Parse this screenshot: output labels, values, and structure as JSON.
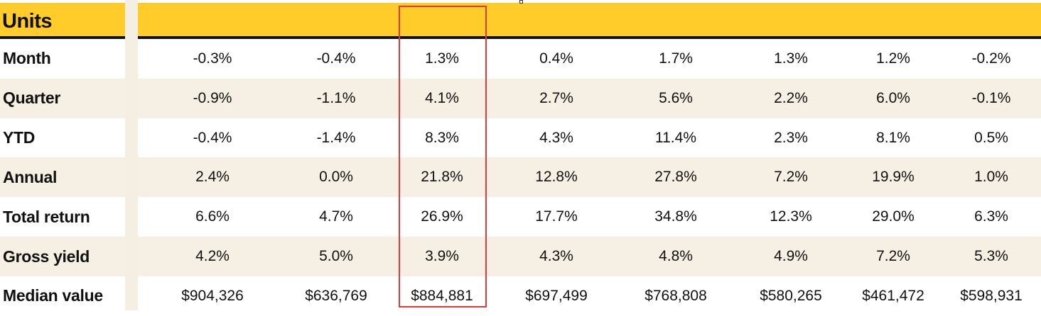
{
  "header": {
    "title": "Units"
  },
  "rows": [
    {
      "label": "Month",
      "values": [
        "-0.3%",
        "-0.4%",
        "1.3%",
        "0.4%",
        "1.7%",
        "1.3%",
        "1.2%",
        "-0.2%"
      ]
    },
    {
      "label": "Quarter",
      "values": [
        "-0.9%",
        "-1.1%",
        "4.1%",
        "2.7%",
        "5.6%",
        "2.2%",
        "6.0%",
        "-0.1%"
      ]
    },
    {
      "label": "YTD",
      "values": [
        "-0.4%",
        "-1.4%",
        "8.3%",
        "4.3%",
        "11.4%",
        "2.3%",
        "8.1%",
        "0.5%"
      ]
    },
    {
      "label": "Annual",
      "values": [
        "2.4%",
        "0.0%",
        "21.8%",
        "12.8%",
        "27.8%",
        "7.2%",
        "19.9%",
        "1.0%"
      ]
    },
    {
      "label": "Total return",
      "values": [
        "6.6%",
        "4.7%",
        "26.9%",
        "17.7%",
        "34.8%",
        "12.3%",
        "29.0%",
        "6.3%"
      ]
    },
    {
      "label": "Gross yield",
      "values": [
        "4.2%",
        "5.0%",
        "3.9%",
        "4.3%",
        "4.8%",
        "4.9%",
        "7.2%",
        "5.3%"
      ]
    },
    {
      "label": "Median value",
      "values": [
        "$904,326",
        "$636,769",
        "$884,881",
        "$697,499",
        "$768,808",
        "$580,265",
        "$461,472",
        "$598,931"
      ]
    }
  ],
  "colors": {
    "header_yellow": "#FFCC29",
    "alt_row": "#F6EFE3",
    "highlight_border": "#E03A3A"
  }
}
